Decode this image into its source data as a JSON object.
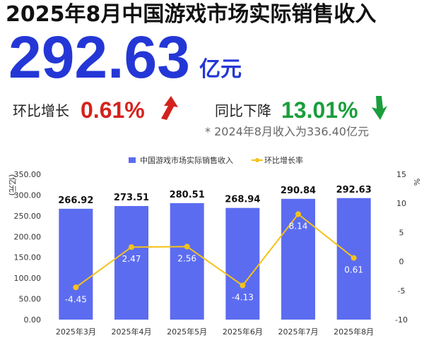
{
  "header": {
    "title": "2025年8月中国游戏市场实际销售收入",
    "big_value": "292.63",
    "big_unit": "亿元",
    "mom_label": "环比增长",
    "mom_value": "0.61%",
    "yoy_label": "同比下降",
    "yoy_value": "13.01%",
    "note": "* 2024年8月收入为336.40亿元"
  },
  "chart_data": {
    "type": "bar",
    "categories": [
      "2025年3月",
      "2025年4月",
      "2025年5月",
      "2025年6月",
      "2025年7月",
      "2025年8月"
    ],
    "series": [
      {
        "name": "中国游戏市场实际销售收入",
        "type": "bar",
        "color": "#5c6cf0",
        "values": [
          266.92,
          273.51,
          280.51,
          268.94,
          290.84,
          292.63
        ]
      },
      {
        "name": "环比增长率",
        "type": "line",
        "axis": "y2",
        "color": "#f4c21b",
        "values": [
          -4.45,
          2.47,
          2.56,
          -4.13,
          8.14,
          0.61
        ]
      }
    ],
    "ylabel": "(亿元)",
    "y2label": "%",
    "ylim": [
      0,
      350
    ],
    "yticks": [
      {
        "value": 0,
        "label": "0.00"
      },
      {
        "value": 50,
        "label": "50.00"
      },
      {
        "value": 100,
        "label": "100.00"
      },
      {
        "value": 150,
        "label": "150.00"
      },
      {
        "value": 200,
        "label": "200.00"
      },
      {
        "value": 250,
        "label": "250.00"
      },
      {
        "value": 300,
        "label": "300.00"
      },
      {
        "value": 350,
        "label": "350.00"
      }
    ],
    "y2lim": [
      -10,
      15
    ],
    "y2ticks": [
      -10,
      -5,
      0,
      5,
      10,
      15
    ],
    "legend": "top"
  }
}
